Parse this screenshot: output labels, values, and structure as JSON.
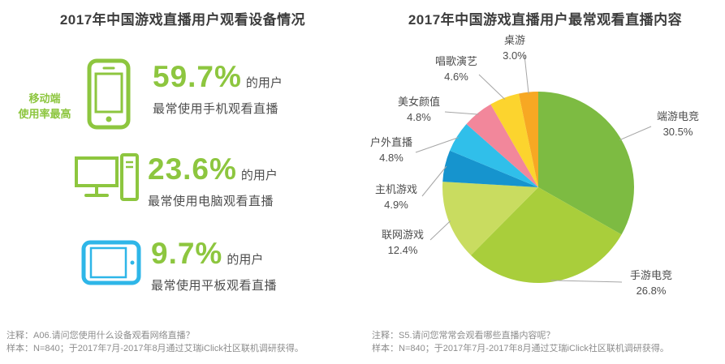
{
  "left_panel": {
    "title": "2017年中国游戏直播用户观看设备情况",
    "highlight": {
      "line1": "移动端",
      "line2": "使用率最高"
    },
    "items": [
      {
        "icon": "smartphone-icon",
        "percent": "59.7%",
        "suffix": "的用户",
        "desc": "最常使用手机观看直播"
      },
      {
        "icon": "desktop-computer-icon",
        "percent": "23.6%",
        "suffix": "的用户",
        "desc": "最常使用电脑观看直播"
      },
      {
        "icon": "tablet-icon",
        "percent": "9.7%",
        "suffix": "的用户",
        "desc": "最常使用平板观看直播"
      }
    ],
    "notes": [
      "注释：A06.请问您使用什么设备观看网络直播？",
      "样本：N=840；于2017年7月-2017年8月通过艾瑞iClick社区联机调研获得。"
    ]
  },
  "right_panel": {
    "title": "2017年中国游戏直播用户最常观看直播内容",
    "notes": [
      "注释：S5.请问您常常会观看哪些直播内容呢？",
      "样本：N=840；于2017年7月-2017年8月通过艾瑞iClick社区联机调研获得。"
    ]
  },
  "colors": {
    "green": "#8DC63F",
    "blue": "#2EB6E8",
    "text_dark": "#3D3D3D",
    "text_gray": "#4D4D4D",
    "note_gray": "#8C8C8C"
  },
  "chart_data": [
    {
      "type": "table",
      "title": "2017年中国游戏直播用户观看设备情况",
      "categories": [
        "手机",
        "电脑",
        "平板"
      ],
      "values": [
        59.7,
        23.6,
        9.7
      ],
      "unit": "%",
      "annotation": "移动端使用率最高"
    },
    {
      "type": "pie",
      "title": "2017年中国游戏直播用户最常观看直播内容",
      "labels": [
        "端游电竞",
        "手游电竞",
        "联网游戏",
        "主机游戏",
        "户外直播",
        "美女颜值",
        "唱歌演艺",
        "桌游"
      ],
      "values": [
        30.5,
        26.8,
        12.4,
        4.9,
        4.8,
        4.8,
        4.6,
        3.0
      ],
      "unit": "%",
      "colors": [
        "#7DBB42",
        "#A9CE3B",
        "#C9DC60",
        "#1694CE",
        "#30BFEA",
        "#F2879B",
        "#FCD42E",
        "#F7A823"
      ],
      "start_angle_deg": 0,
      "direction": "clockwise",
      "label_position": "outside",
      "legend_position": "none"
    }
  ]
}
